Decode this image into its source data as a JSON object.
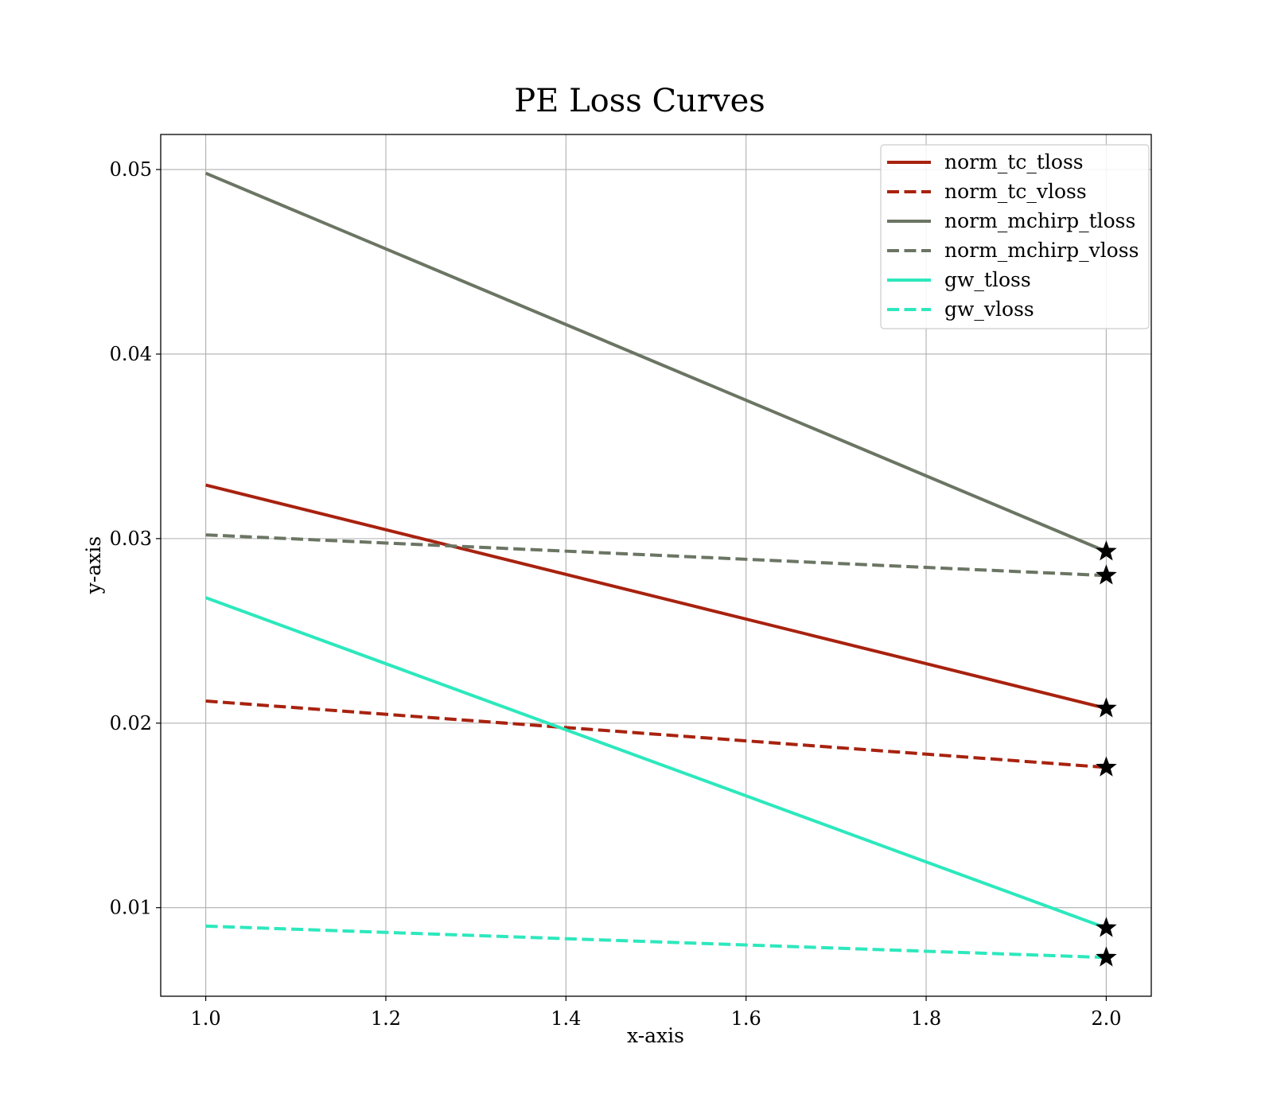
{
  "chart_data": {
    "type": "line",
    "title": "PE Loss Curves",
    "xlabel": "x-axis",
    "ylabel": "y-axis",
    "xlim": [
      0.95,
      2.05
    ],
    "ylim": [
      0.0052,
      0.0519
    ],
    "xticks": [
      1.0,
      1.2,
      1.4,
      1.6,
      1.8,
      2.0
    ],
    "xtick_labels": [
      "1.0",
      "1.2",
      "1.4",
      "1.6",
      "1.8",
      "2.0"
    ],
    "yticks": [
      0.01,
      0.02,
      0.03,
      0.04,
      0.05
    ],
    "ytick_labels": [
      "0.01",
      "0.02",
      "0.03",
      "0.04",
      "0.05"
    ],
    "grid": true,
    "legend_position": "top-right",
    "x": [
      1.0,
      2.0
    ],
    "series": [
      {
        "name": "norm_tc_tloss",
        "values": [
          0.0329,
          0.0208
        ],
        "color": "#a8220f",
        "style": "solid",
        "end_marker": "star"
      },
      {
        "name": "norm_tc_vloss",
        "values": [
          0.0212,
          0.0176
        ],
        "color": "#a8220f",
        "style": "dashed",
        "end_marker": "star"
      },
      {
        "name": "norm_mchirp_tloss",
        "values": [
          0.0498,
          0.0293
        ],
        "color": "#6b7563",
        "style": "solid",
        "end_marker": "star"
      },
      {
        "name": "norm_mchirp_vloss",
        "values": [
          0.0302,
          0.028
        ],
        "color": "#6b7563",
        "style": "dashed",
        "end_marker": "star"
      },
      {
        "name": "gw_tloss",
        "values": [
          0.0268,
          0.0089
        ],
        "color": "#2de8bd",
        "style": "solid",
        "end_marker": "star"
      },
      {
        "name": "gw_vloss",
        "values": [
          0.009,
          0.0073
        ],
        "color": "#2de8bd",
        "style": "dashed",
        "end_marker": "star"
      }
    ]
  }
}
